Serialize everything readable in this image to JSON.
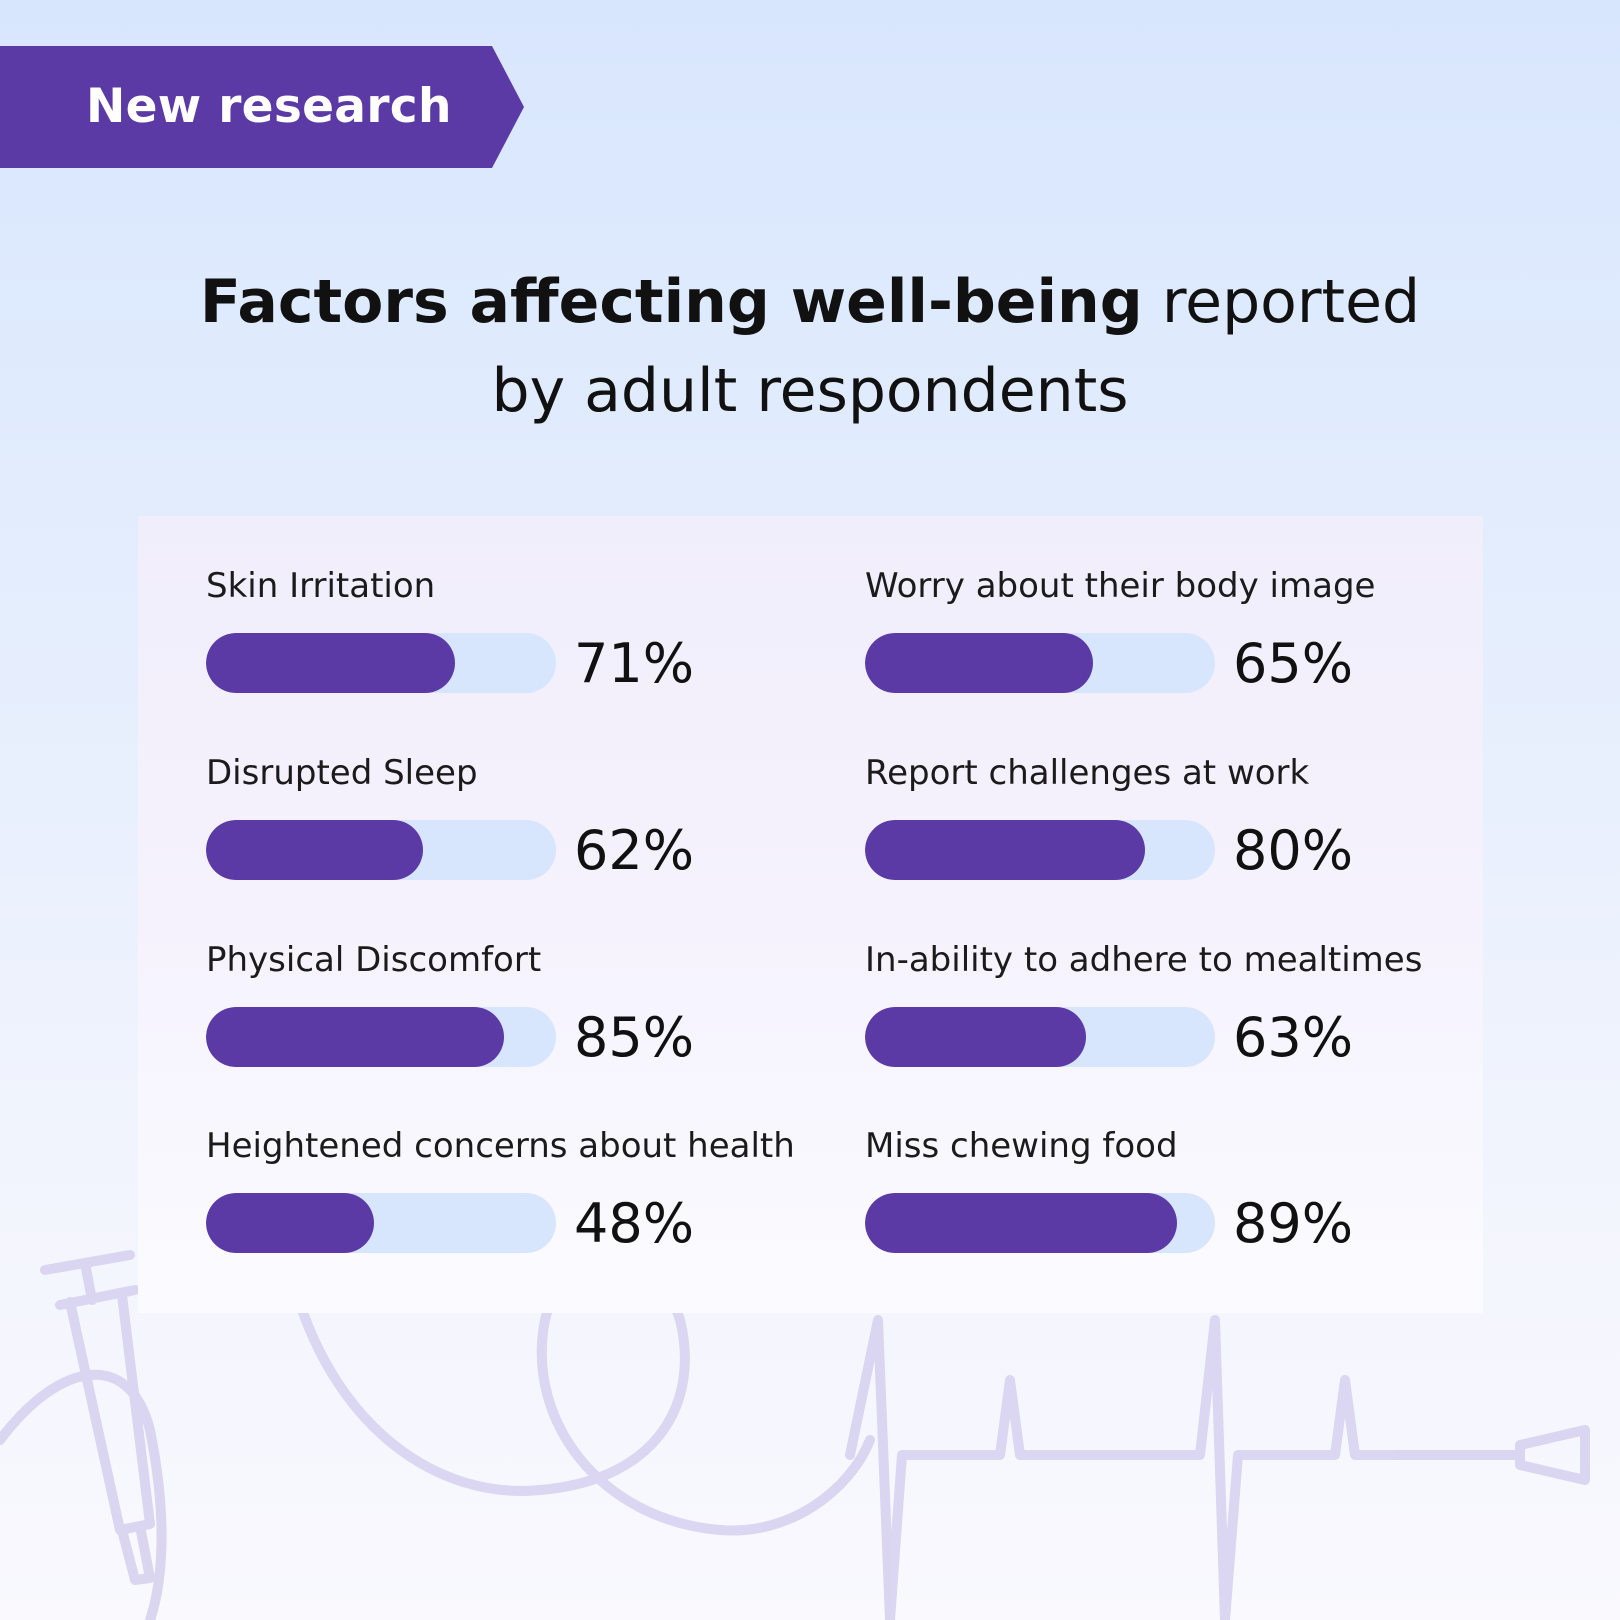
{
  "badge": {
    "label": "New research"
  },
  "title": {
    "bold": "Factors affecting well-being",
    "rest_line1": "reported",
    "line2": "by adult respondents"
  },
  "colors": {
    "accent": "#5b3aa6",
    "track": "#d8e6fd",
    "text": "#111111",
    "decoration": "#d6d0ee"
  },
  "chart_data": {
    "type": "bar",
    "orientation": "horizontal",
    "unit": "%",
    "xlim": [
      0,
      100
    ],
    "categories": [
      "Skin Irritation",
      "Disrupted Sleep",
      "Physical Discomfort",
      "Heightened concerns about health",
      "Worry about their body image",
      "Report challenges at work",
      "In-ability to adhere to mealtimes",
      "Miss chewing food"
    ],
    "values": [
      71,
      62,
      85,
      48,
      65,
      80,
      63,
      89
    ],
    "labels": [
      "71%",
      "62%",
      "85%",
      "48%",
      "65%",
      "80%",
      "63%",
      "89%"
    ],
    "grid": false,
    "legend": "none"
  },
  "decorations": [
    "syringe-illustration",
    "feeding-tube-illustration",
    "heartbeat-line-illustration"
  ]
}
